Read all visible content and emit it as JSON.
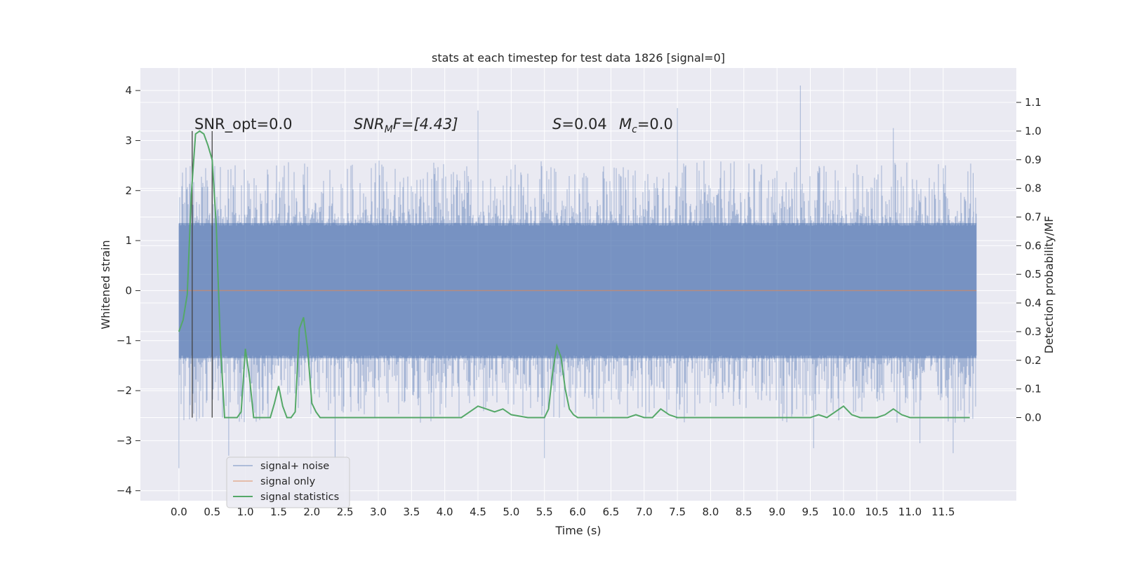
{
  "chart_data": {
    "type": "line",
    "title": "stats at each timestep for test data 1826 [signal=0]",
    "xlabel": "Time (s)",
    "ylabel": "Whitened strain",
    "y2label": "Detection probability/MF",
    "xlim": [
      -0.58,
      12.6
    ],
    "ylim": [
      -4.2,
      4.45
    ],
    "y2lim": [
      -0.29,
      1.22
    ],
    "x_ticks": [
      "0.0",
      "0.5",
      "1.0",
      "1.5",
      "2.0",
      "2.5",
      "3.0",
      "3.5",
      "4.0",
      "4.5",
      "5.0",
      "5.5",
      "6.0",
      "6.5",
      "7.0",
      "7.5",
      "8.0",
      "8.5",
      "9.0",
      "9.5",
      "10.0",
      "10.5",
      "11.0",
      "11.5"
    ],
    "y_ticks": [
      "4",
      "3",
      "2",
      "1",
      "0",
      "−1",
      "−2",
      "−3",
      "−4"
    ],
    "y2_ticks": [
      "1.1",
      "1.0",
      "0.9",
      "0.8",
      "0.7",
      "0.6",
      "0.5",
      "0.4",
      "0.3",
      "0.2",
      "0.1",
      "0.0"
    ],
    "grid": true,
    "legend_position": "lower-left",
    "annotations": {
      "snr_opt": "SNR_opt=0.0",
      "snr_mf": "SNR",
      "snr_mf_sub": "M",
      "snr_mf_rest": "F=[4.43]",
      "s_label": "S",
      "s_rest": "=0.04",
      "mc_label": "M",
      "mc_sub": "c",
      "mc_rest": "=0.0"
    },
    "series": [
      {
        "name": "signal+ noise",
        "color": "#4c72b0",
        "x_range": [
          0.0,
          12.0
        ],
        "sample_rate": 2048,
        "band": [
          -1.35,
          1.35
        ],
        "peaks": [
          {
            "x": 0.0,
            "y": -3.55
          },
          {
            "x": 0.0,
            "y": 1.3
          },
          {
            "x": 0.5,
            "y": 2.0
          },
          {
            "x": 0.75,
            "y": -3.3
          },
          {
            "x": 2.35,
            "y": -3.35
          },
          {
            "x": 4.5,
            "y": 3.6
          },
          {
            "x": 5.5,
            "y": -3.35
          },
          {
            "x": 7.5,
            "y": 3.65
          },
          {
            "x": 9.35,
            "y": 4.1
          },
          {
            "x": 9.55,
            "y": -3.15
          },
          {
            "x": 10.75,
            "y": 3.25
          },
          {
            "x": 11.15,
            "y": -3.05
          },
          {
            "x": 11.65,
            "y": -3.25
          },
          {
            "x": 11.95,
            "y": 2.35
          }
        ]
      },
      {
        "name": "signal only",
        "color": "#dd8452",
        "x": [
          0.0,
          12.0
        ],
        "y": [
          0.0,
          0.0
        ]
      },
      {
        "name": "signal statistics",
        "color": "#55a868",
        "axis": "right",
        "x": [
          0.0,
          0.062,
          0.125,
          0.187,
          0.25,
          0.312,
          0.375,
          0.437,
          0.5,
          0.562,
          0.625,
          0.687,
          0.75,
          0.812,
          0.875,
          0.937,
          1.0,
          1.062,
          1.125,
          1.187,
          1.25,
          1.312,
          1.375,
          1.437,
          1.5,
          1.562,
          1.625,
          1.687,
          1.75,
          1.812,
          1.875,
          1.937,
          2.0,
          2.062,
          2.125,
          2.187,
          2.25,
          2.5,
          2.75,
          3.0,
          3.25,
          3.5,
          3.75,
          4.0,
          4.25,
          4.375,
          4.5,
          4.625,
          4.75,
          4.875,
          5.0,
          5.25,
          5.5,
          5.562,
          5.625,
          5.687,
          5.75,
          5.812,
          5.875,
          5.937,
          6.0,
          6.25,
          6.5,
          6.75,
          6.875,
          7.0,
          7.125,
          7.25,
          7.375,
          7.5,
          7.75,
          8.0,
          8.25,
          8.5,
          8.75,
          8.875,
          9.0,
          9.25,
          9.5,
          9.625,
          9.75,
          9.875,
          10.0,
          10.125,
          10.25,
          10.5,
          10.625,
          10.75,
          10.875,
          11.0,
          11.25,
          11.5,
          11.75,
          11.9
        ],
        "y": [
          0.3,
          0.34,
          0.43,
          0.78,
          0.99,
          1.0,
          0.99,
          0.95,
          0.9,
          0.67,
          0.25,
          0.0,
          0.0,
          0.0,
          0.0,
          0.02,
          0.24,
          0.14,
          0.0,
          0.0,
          0.0,
          0.0,
          0.0,
          0.05,
          0.11,
          0.04,
          0.0,
          0.0,
          0.02,
          0.31,
          0.35,
          0.24,
          0.05,
          0.02,
          0.0,
          0.0,
          0.0,
          0.0,
          0.0,
          0.0,
          0.0,
          0.0,
          0.0,
          0.0,
          0.0,
          0.02,
          0.04,
          0.03,
          0.02,
          0.03,
          0.01,
          0.0,
          0.0,
          0.03,
          0.16,
          0.25,
          0.21,
          0.1,
          0.03,
          0.01,
          0.0,
          0.0,
          0.0,
          0.0,
          0.01,
          0.0,
          0.0,
          0.03,
          0.01,
          0.0,
          0.0,
          0.0,
          0.0,
          0.0,
          0.0,
          0.0,
          0.0,
          0.0,
          0.0,
          0.01,
          0.0,
          0.02,
          0.04,
          0.01,
          0.0,
          0.0,
          0.01,
          0.03,
          0.01,
          0.0,
          0.0,
          0.0,
          0.0,
          0.0
        ],
        "y2_ticks_values": [
          1.1,
          1.0,
          0.9,
          0.8,
          0.7,
          0.6,
          0.5,
          0.4,
          0.3,
          0.2,
          0.1,
          0.0
        ]
      }
    ],
    "vertical_markers": [
      0.2,
      0.5
    ],
    "legend": [
      "signal+ noise",
      "signal only",
      "signal statistics"
    ]
  }
}
